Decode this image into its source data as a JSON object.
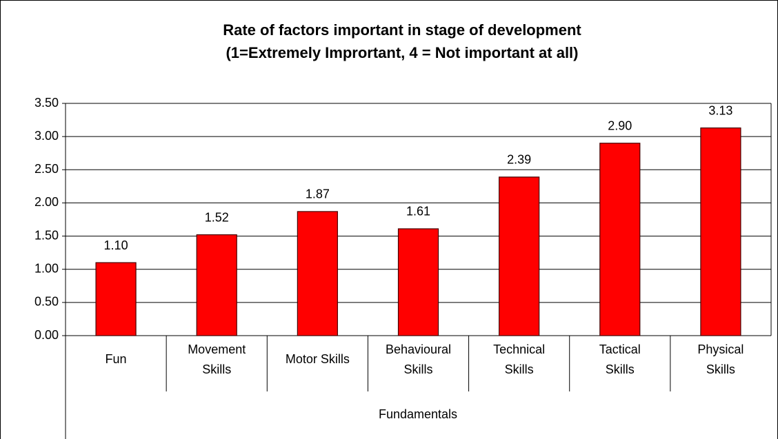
{
  "chart_data": {
    "type": "bar",
    "title": "Rate of factors important in stage of development",
    "subtitle": "(1=Extremely Imprortant, 4 = Not important at all)",
    "x_group_label": "Fundamentals",
    "categories": [
      "Fun",
      "Movement Skills",
      "Motor Skills",
      "Behavioural Skills",
      "Technical Skills",
      "Tactical Skills",
      "Physical Skills"
    ],
    "values": [
      1.1,
      1.52,
      1.87,
      1.61,
      2.39,
      2.9,
      3.13
    ],
    "value_labels": [
      "1.10",
      "1.52",
      "1.87",
      "1.61",
      "2.39",
      "2.90",
      "3.13"
    ],
    "color": "#ff0000",
    "ylim": [
      0,
      3.5
    ],
    "yticks": [
      {
        "value": 0,
        "label": "0.00"
      },
      {
        "value": 0.5,
        "label": "0.50"
      },
      {
        "value": 1,
        "label": "1.00"
      },
      {
        "value": 1.5,
        "label": "1.50"
      },
      {
        "value": 2,
        "label": "2.00"
      },
      {
        "value": 2.5,
        "label": "2.50"
      },
      {
        "value": 3,
        "label": "3.00"
      },
      {
        "value": 3.5,
        "label": "3.50"
      }
    ],
    "grid": true
  }
}
